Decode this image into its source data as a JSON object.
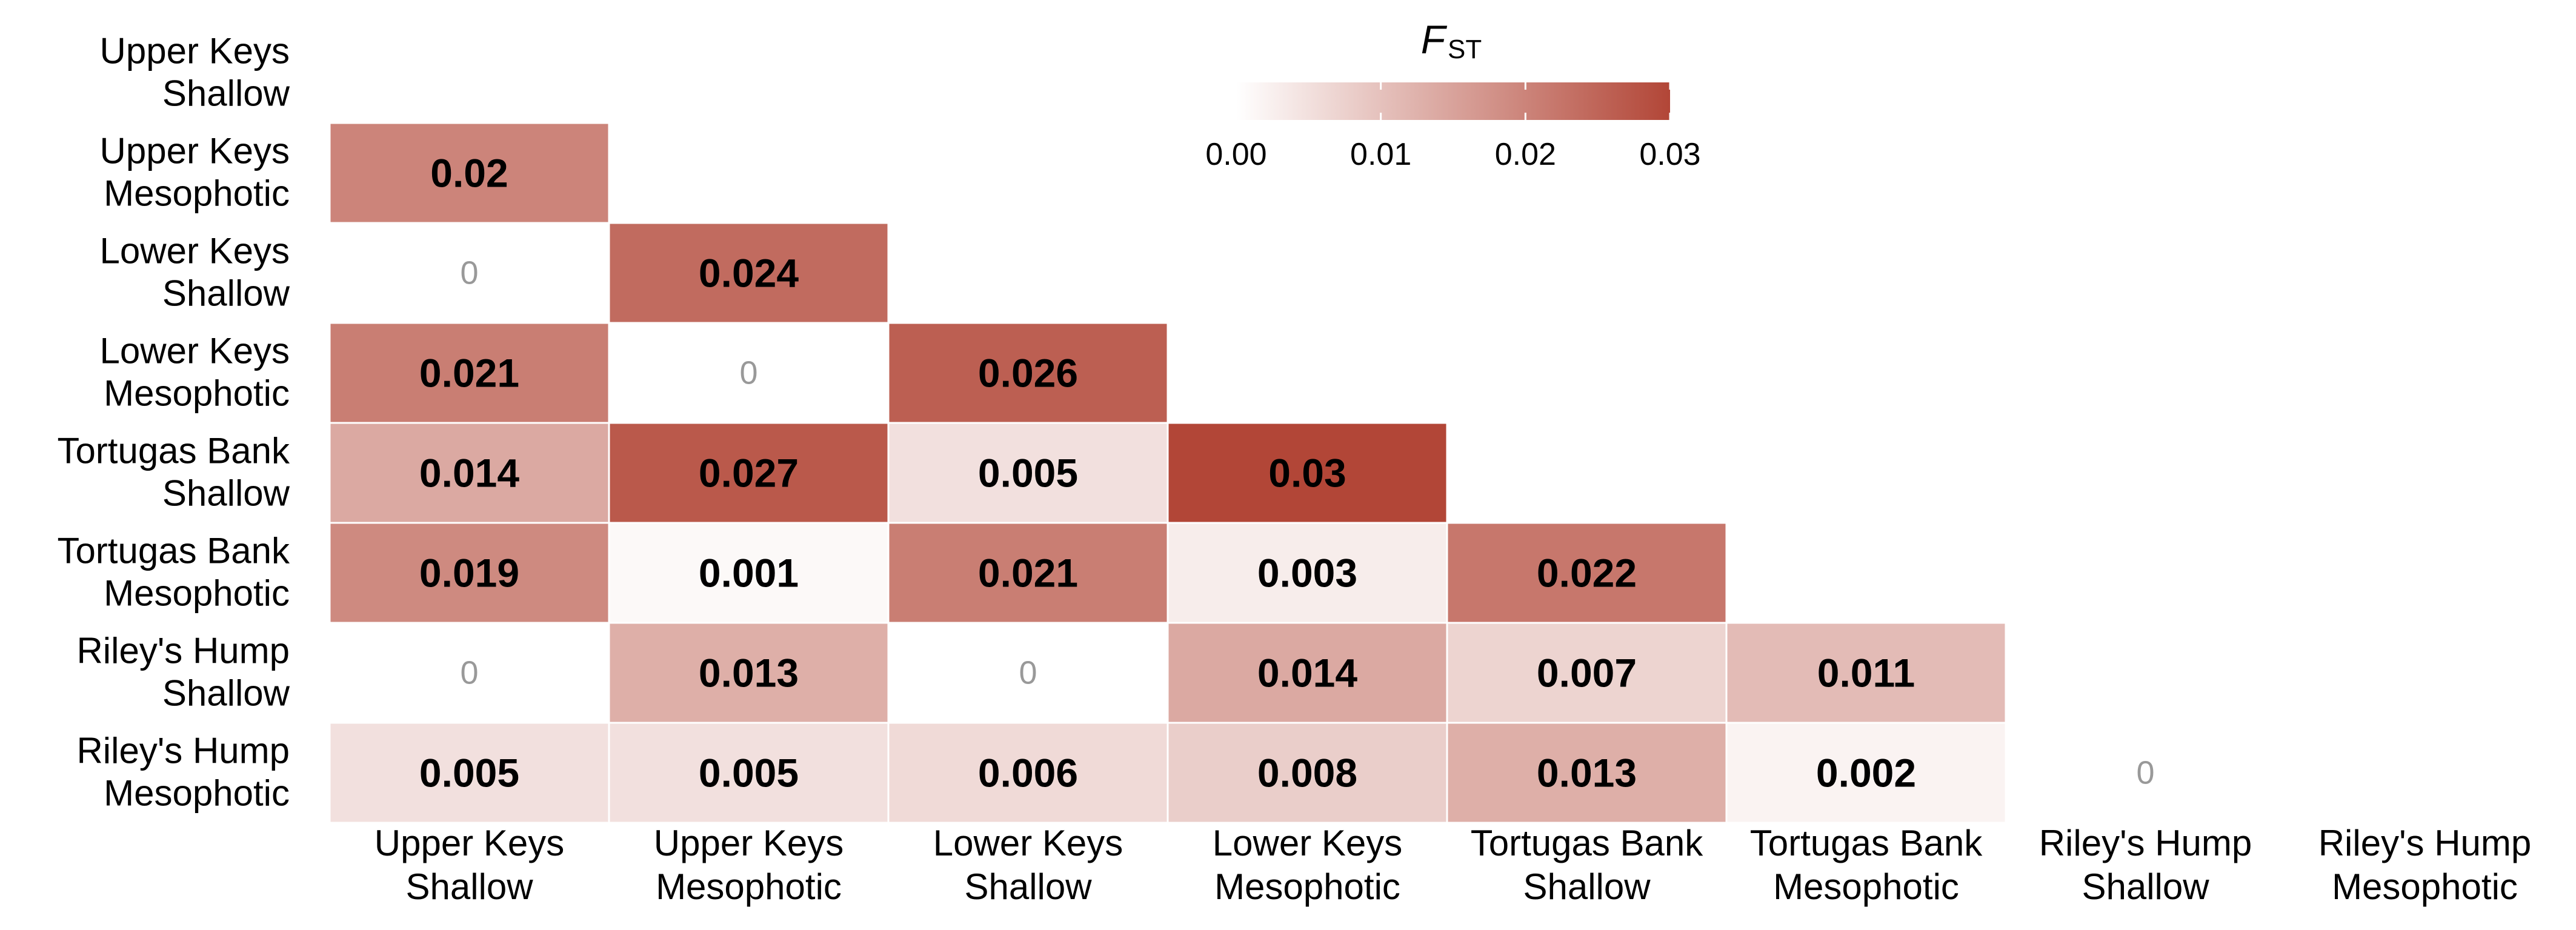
{
  "chart_data": {
    "type": "heatmap",
    "title": "",
    "legend": {
      "title_main": "F",
      "title_sub": "ST",
      "placement": "top-center",
      "ticks": [
        "0.00",
        "0.01",
        "0.02",
        "0.03"
      ],
      "tick_values": [
        0,
        0.01,
        0.02,
        0.03
      ],
      "range": [
        0,
        0.03
      ]
    },
    "colors": {
      "low": "#ffffff",
      "high": "#b24637",
      "cell_border": "#ffffff",
      "zero_text": "#999999",
      "value_text": "#000000"
    },
    "rows": [
      [
        "Upper Keys",
        "Shallow"
      ],
      [
        "Upper Keys",
        "Mesophotic"
      ],
      [
        "Lower Keys",
        "Shallow"
      ],
      [
        "Lower Keys",
        "Mesophotic"
      ],
      [
        "Tortugas Bank",
        "Shallow"
      ],
      [
        "Tortugas Bank",
        "Mesophotic"
      ],
      [
        "Riley's Hump",
        "Shallow"
      ],
      [
        "Riley's Hump",
        "Mesophotic"
      ]
    ],
    "columns": [
      [
        "Upper Keys",
        "Shallow"
      ],
      [
        "Upper Keys",
        "Mesophotic"
      ],
      [
        "Lower Keys",
        "Shallow"
      ],
      [
        "Lower Keys",
        "Mesophotic"
      ],
      [
        "Tortugas Bank",
        "Shallow"
      ],
      [
        "Tortugas Bank",
        "Mesophotic"
      ],
      [
        "Riley's Hump",
        "Shallow"
      ],
      [
        "Riley's Hump",
        "Mesophotic"
      ]
    ],
    "values": [
      [
        null,
        null,
        null,
        null,
        null,
        null,
        null,
        null
      ],
      [
        0.02,
        null,
        null,
        null,
        null,
        null,
        null,
        null
      ],
      [
        0,
        0.024,
        null,
        null,
        null,
        null,
        null,
        null
      ],
      [
        0.021,
        0,
        0.026,
        null,
        null,
        null,
        null,
        null
      ],
      [
        0.014,
        0.027,
        0.005,
        0.03,
        null,
        null,
        null,
        null
      ],
      [
        0.019,
        0.001,
        0.021,
        0.003,
        0.022,
        null,
        null,
        null
      ],
      [
        0,
        0.013,
        0,
        0.014,
        0.007,
        0.011,
        null,
        null
      ],
      [
        0.005,
        0.005,
        0.006,
        0.008,
        0.013,
        0.002,
        0,
        null
      ]
    ],
    "labels": [
      [
        null,
        null,
        null,
        null,
        null,
        null,
        null,
        null
      ],
      [
        "0.02",
        null,
        null,
        null,
        null,
        null,
        null,
        null
      ],
      [
        "0",
        "0.024",
        null,
        null,
        null,
        null,
        null,
        null
      ],
      [
        "0.021",
        "0",
        "0.026",
        null,
        null,
        null,
        null,
        null
      ],
      [
        "0.014",
        "0.027",
        "0.005",
        "0.03",
        null,
        null,
        null,
        null
      ],
      [
        "0.019",
        "0.001",
        "0.021",
        "0.003",
        "0.022",
        null,
        null,
        null
      ],
      [
        "0",
        "0.013",
        "0",
        "0.014",
        "0.007",
        "0.011",
        null,
        null
      ],
      [
        "0.005",
        "0.005",
        "0.006",
        "0.008",
        "0.013",
        "0.002",
        "0",
        null
      ]
    ]
  }
}
